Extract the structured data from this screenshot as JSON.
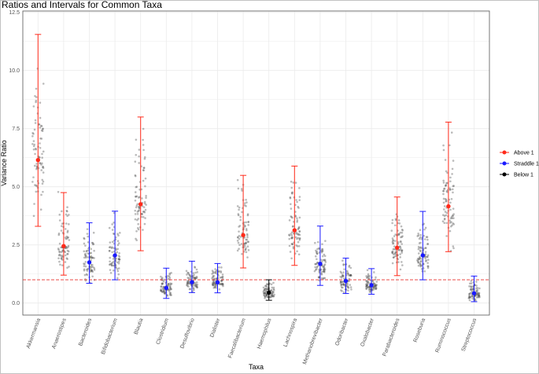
{
  "chart_data": {
    "type": "scatter",
    "title": "Ratios and Intervals for Common Taxa",
    "xlabel": "Taxa",
    "ylabel": "Variance Ratio",
    "ylim": [
      0,
      12.5
    ],
    "yticks": [
      "0.0",
      "2.5",
      "5.0",
      "7.5",
      "10.0",
      "12.5"
    ],
    "grid": true,
    "reference_line": {
      "y": 1,
      "style": "dashed",
      "color": "#e8322e"
    },
    "legend": {
      "placement": "right",
      "entries": [
        {
          "label": "Above 1",
          "color": "#ff2a1a"
        },
        {
          "label": "Straddle 1",
          "color": "#1a1aff"
        },
        {
          "label": "Below 1",
          "color": "#000000"
        }
      ]
    },
    "categories": [
      "Akkermansia",
      "Anaerostipes",
      "Bacteroides",
      "Bifidobacterium",
      "Blautia",
      "Clostridium",
      "Desulfovibrio",
      "Dialister",
      "Faecalibacterium",
      "Haemophilus",
      "Lachnospira",
      "Methanobrevibacter",
      "Odoribacter",
      "Oxalobacter",
      "Parabacteroides",
      "Roseburia",
      "Ruminococcus",
      "Streptococcus"
    ],
    "series": [
      {
        "taxon": "Akkermansia",
        "ratio": 6.15,
        "lower": 3.3,
        "upper": 11.55,
        "group": "Above 1"
      },
      {
        "taxon": "Anaerostipes",
        "ratio": 2.45,
        "lower": 1.2,
        "upper": 4.75,
        "group": "Above 1"
      },
      {
        "taxon": "Bacteroides",
        "ratio": 1.75,
        "lower": 0.85,
        "upper": 3.45,
        "group": "Straddle 1"
      },
      {
        "taxon": "Bifidobacterium",
        "ratio": 2.05,
        "lower": 1.0,
        "upper": 3.95,
        "group": "Straddle 1"
      },
      {
        "taxon": "Blautia",
        "ratio": 4.25,
        "lower": 2.25,
        "upper": 8.0,
        "group": "Above 1"
      },
      {
        "taxon": "Clostridium",
        "ratio": 0.65,
        "lower": 0.2,
        "upper": 1.5,
        "group": "Straddle 1"
      },
      {
        "taxon": "Desulfovibrio",
        "ratio": 0.9,
        "lower": 0.45,
        "upper": 1.8,
        "group": "Straddle 1"
      },
      {
        "taxon": "Dialister",
        "ratio": 0.89,
        "lower": 0.44,
        "upper": 1.7,
        "group": "Straddle 1"
      },
      {
        "taxon": "Faecalibacterium",
        "ratio": 2.92,
        "lower": 1.51,
        "upper": 5.49,
        "group": "Above 1"
      },
      {
        "taxon": "Haemophilus",
        "ratio": 0.45,
        "lower": 0.12,
        "upper": 1.0,
        "group": "Below 1"
      },
      {
        "taxon": "Lachnospira",
        "ratio": 3.13,
        "lower": 1.62,
        "upper": 5.89,
        "group": "Above 1"
      },
      {
        "taxon": "Methanobrevibacter",
        "ratio": 1.69,
        "lower": 0.76,
        "upper": 3.31,
        "group": "Straddle 1"
      },
      {
        "taxon": "Odoribacter",
        "ratio": 0.95,
        "lower": 0.41,
        "upper": 1.93,
        "group": "Straddle 1"
      },
      {
        "taxon": "Oxalobacter",
        "ratio": 0.77,
        "lower": 0.38,
        "upper": 1.48,
        "group": "Straddle 1"
      },
      {
        "taxon": "Parabacteroides",
        "ratio": 2.38,
        "lower": 1.18,
        "upper": 4.56,
        "group": "Above 1"
      },
      {
        "taxon": "Roseburia",
        "ratio": 2.05,
        "lower": 1.0,
        "upper": 3.94,
        "group": "Straddle 1"
      },
      {
        "taxon": "Ruminococcus",
        "ratio": 4.16,
        "lower": 2.21,
        "upper": 7.78,
        "group": "Above 1"
      },
      {
        "taxon": "Streptococcus",
        "ratio": 0.42,
        "lower": 0.06,
        "upper": 1.16,
        "group": "Straddle 1"
      }
    ]
  }
}
